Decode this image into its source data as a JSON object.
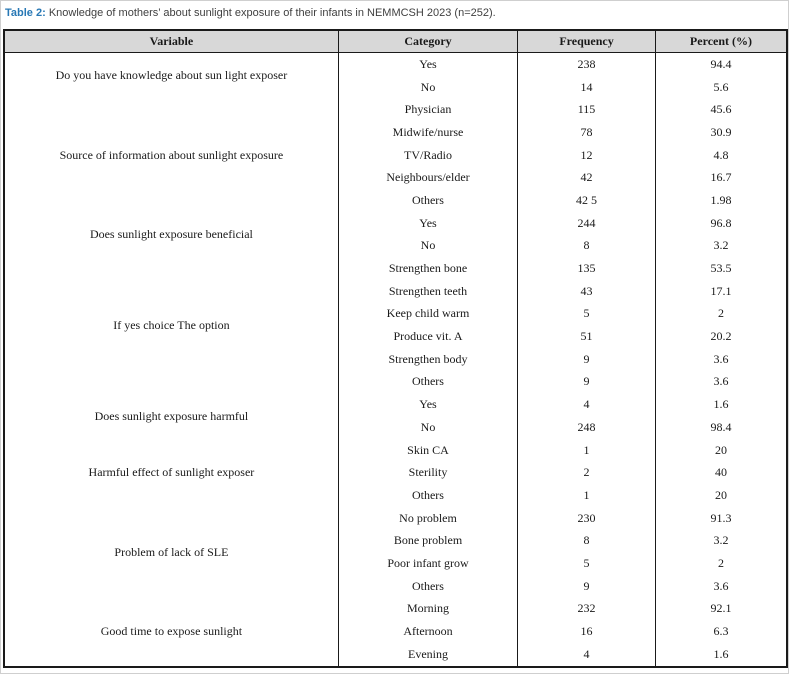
{
  "caption": {
    "label": "Table 2:",
    "text": " Knowledge of mothers’ about sunlight exposure of their infants in NEMMCSH 2023 (n=252)."
  },
  "table": {
    "headers": [
      "Variable",
      "Category",
      "Frequency",
      "Percent (%)"
    ],
    "groups": [
      {
        "variable": "Do you have knowledge about sun light exposer",
        "rows": [
          {
            "category": "Yes",
            "frequency": "238",
            "percent": "94.4"
          },
          {
            "category": "No",
            "frequency": "14",
            "percent": "5.6"
          }
        ]
      },
      {
        "variable": "Source of information about sunlight exposure",
        "rows": [
          {
            "category": "Physician",
            "frequency": "115",
            "percent": "45.6"
          },
          {
            "category": "Midwife/nurse",
            "frequency": "78",
            "percent": "30.9"
          },
          {
            "category": "TV/Radio",
            "frequency": "12",
            "percent": "4.8"
          },
          {
            "category": "Neighbours/elder",
            "frequency": "42",
            "percent": "16.7"
          },
          {
            "category": "Others",
            "frequency": "42 5",
            "percent": "1.98"
          }
        ]
      },
      {
        "variable": "Does sunlight exposure beneficial",
        "rows": [
          {
            "category": "Yes",
            "frequency": "244",
            "percent": "96.8"
          },
          {
            "category": "No",
            "frequency": "8",
            "percent": "3.2"
          }
        ]
      },
      {
        "variable": "If yes choice The option",
        "rows": [
          {
            "category": "Strengthen bone",
            "frequency": "135",
            "percent": "53.5"
          },
          {
            "category": "Strengthen teeth",
            "frequency": "43",
            "percent": "17.1"
          },
          {
            "category": "Keep child warm",
            "frequency": "5",
            "percent": "2"
          },
          {
            "category": "Produce vit. A",
            "frequency": "51",
            "percent": "20.2"
          },
          {
            "category": "Strengthen body",
            "frequency": "9",
            "percent": "3.6"
          },
          {
            "category": "Others",
            "frequency": "9",
            "percent": "3.6"
          }
        ]
      },
      {
        "variable": "Does sunlight exposure harmful",
        "rows": [
          {
            "category": "Yes",
            "frequency": "4",
            "percent": "1.6"
          },
          {
            "category": "No",
            "frequency": "248",
            "percent": "98.4"
          }
        ]
      },
      {
        "variable": "Harmful effect of sunlight exposer",
        "rows": [
          {
            "category": "Skin CA",
            "frequency": "1",
            "percent": "20"
          },
          {
            "category": "Sterility",
            "frequency": "2",
            "percent": "40"
          },
          {
            "category": "Others",
            "frequency": "1",
            "percent": "20"
          }
        ]
      },
      {
        "variable": "Problem of lack of SLE",
        "rows": [
          {
            "category": "No problem",
            "frequency": "230",
            "percent": "91.3"
          },
          {
            "category": "Bone problem",
            "frequency": "8",
            "percent": "3.2"
          },
          {
            "category": "Poor infant grow",
            "frequency": "5",
            "percent": "2"
          },
          {
            "category": "Others",
            "frequency": "9",
            "percent": "3.6"
          }
        ]
      },
      {
        "variable": "Good time to expose sunlight",
        "rows": [
          {
            "category": "Morning",
            "frequency": "232",
            "percent": "92.1"
          },
          {
            "category": "Afternoon",
            "frequency": "16",
            "percent": "6.3"
          },
          {
            "category": "Evening",
            "frequency": "4",
            "percent": "1.6"
          }
        ]
      }
    ]
  },
  "colors": {
    "title_accent": "#2878b5",
    "header_bg": "#d8d8d8",
    "border": "#1a1a1a"
  }
}
